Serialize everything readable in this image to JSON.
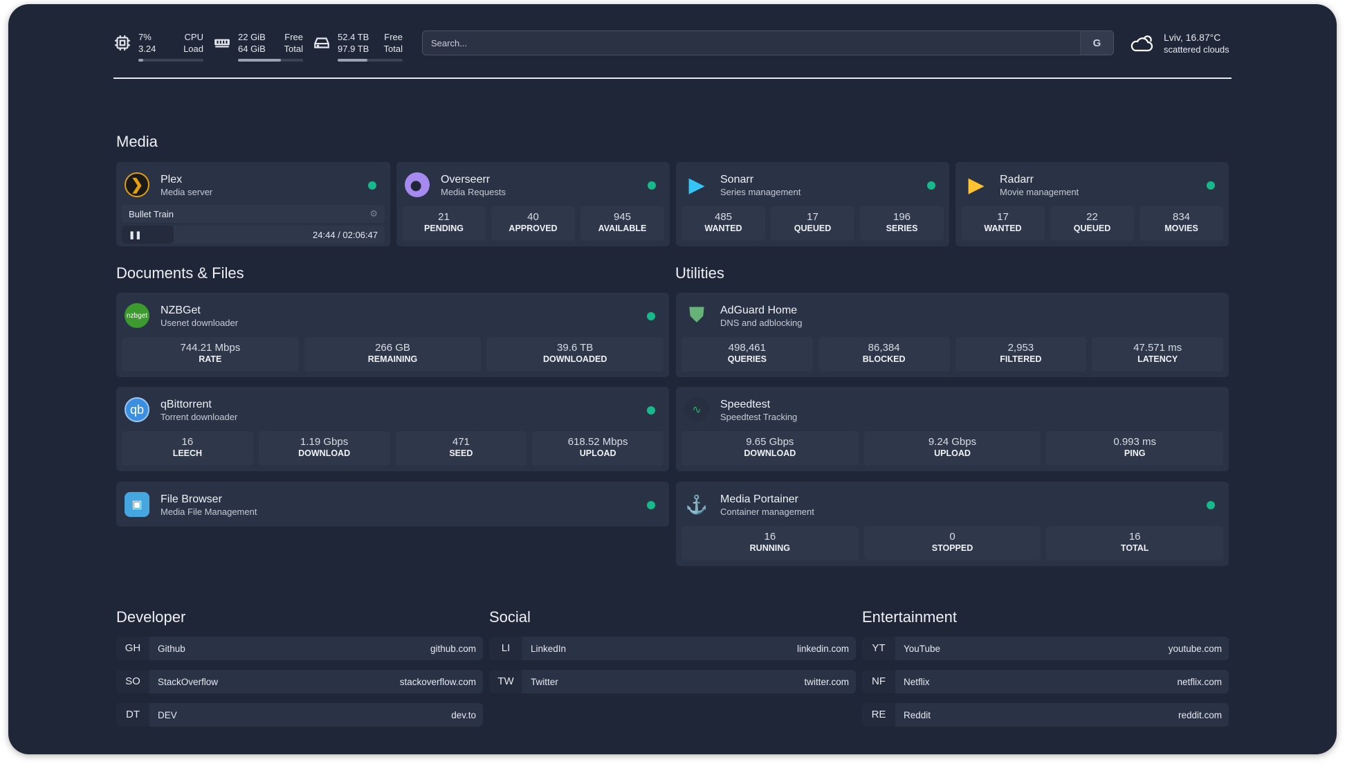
{
  "header": {
    "cpu": {
      "icon": "cpu-icon",
      "value1": "7%",
      "value2": "3.24",
      "label1": "CPU",
      "label2": "Load",
      "percent": 7
    },
    "memory": {
      "icon": "memory-icon",
      "value1": "22 GiB",
      "value2": "64 GiB",
      "label1": "Free",
      "label2": "Total",
      "percent": 66
    },
    "disk": {
      "icon": "disk-icon",
      "value1": "52.4 TB",
      "value2": "97.9 TB",
      "label1": "Free",
      "label2": "Total",
      "percent": 46
    },
    "search": {
      "placeholder": "Search...",
      "provider": "G"
    },
    "weather": {
      "icon": "cloud-icon",
      "location": "Lviv, 16.87°C",
      "description": "scattered clouds"
    }
  },
  "sections": {
    "media": "Media",
    "documents": "Documents & Files",
    "utilities": "Utilities",
    "developer": "Developer",
    "social": "Social",
    "entertainment": "Entertainment"
  },
  "status_color": "#16b98a",
  "plex": {
    "title": "Plex",
    "subtitle": "Media server",
    "icon": "plex-icon",
    "now_playing": "Bullet Train",
    "time": "24:44 / 02:06:47",
    "progress": 20
  },
  "cards": [
    {
      "id": "overseerr",
      "title": "Overseerr",
      "subtitle": "Media Requests",
      "icon": "overseerr-icon",
      "stats": [
        {
          "v": "21",
          "l": "PENDING"
        },
        {
          "v": "40",
          "l": "APPROVED"
        },
        {
          "v": "945",
          "l": "AVAILABLE"
        }
      ]
    },
    {
      "id": "sonarr",
      "title": "Sonarr",
      "subtitle": "Series management",
      "icon": "sonarr-icon",
      "stats": [
        {
          "v": "485",
          "l": "WANTED"
        },
        {
          "v": "17",
          "l": "QUEUED"
        },
        {
          "v": "196",
          "l": "SERIES"
        }
      ]
    },
    {
      "id": "radarr",
      "title": "Radarr",
      "subtitle": "Movie management",
      "icon": "radarr-icon",
      "stats": [
        {
          "v": "17",
          "l": "WANTED"
        },
        {
          "v": "22",
          "l": "QUEUED"
        },
        {
          "v": "834",
          "l": "MOVIES"
        }
      ]
    },
    {
      "id": "nzbget",
      "title": "NZBGet",
      "subtitle": "Usenet downloader",
      "icon": "nzbget-icon",
      "icon_text": "nzbget",
      "stats": [
        {
          "v": "744.21 Mbps",
          "l": "RATE"
        },
        {
          "v": "266 GB",
          "l": "REMAINING"
        },
        {
          "v": "39.6 TB",
          "l": "DOWNLOADED"
        }
      ]
    },
    {
      "id": "qbittorrent",
      "title": "qBittorrent",
      "subtitle": "Torrent downloader",
      "icon": "qbittorrent-icon",
      "icon_text": "qb",
      "stats": [
        {
          "v": "16",
          "l": "LEECH"
        },
        {
          "v": "1.19 Gbps",
          "l": "DOWNLOAD"
        },
        {
          "v": "471",
          "l": "SEED"
        },
        {
          "v": "618.52 Mbps",
          "l": "UPLOAD"
        }
      ]
    },
    {
      "id": "filebrowser",
      "title": "File Browser",
      "subtitle": "Media File Management",
      "icon": "file-browser-icon",
      "stats": []
    },
    {
      "id": "adguard",
      "title": "AdGuard Home",
      "subtitle": "DNS and adblocking",
      "icon": "adguard-shield-icon",
      "nodot": true,
      "stats": [
        {
          "v": "498,461",
          "l": "QUERIES"
        },
        {
          "v": "86,384",
          "l": "BLOCKED"
        },
        {
          "v": "2,953",
          "l": "FILTERED"
        },
        {
          "v": "47.571 ms",
          "l": "LATENCY"
        }
      ]
    },
    {
      "id": "speedtest",
      "title": "Speedtest",
      "subtitle": "Speedtest Tracking",
      "icon": "speedtest-icon",
      "nodot": true,
      "stats": [
        {
          "v": "9.65 Gbps",
          "l": "DOWNLOAD"
        },
        {
          "v": "9.24 Gbps",
          "l": "UPLOAD"
        },
        {
          "v": "0.993 ms",
          "l": "PING"
        }
      ]
    },
    {
      "id": "portainer",
      "title": "Media Portainer",
      "subtitle": "Container management",
      "icon": "portainer-icon",
      "stats": [
        {
          "v": "16",
          "l": "RUNNING"
        },
        {
          "v": "0",
          "l": "STOPPED"
        },
        {
          "v": "16",
          "l": "TOTAL"
        }
      ]
    }
  ],
  "bookmarks": {
    "developer": [
      {
        "abbr": "GH",
        "name": "Github",
        "url": "github.com"
      },
      {
        "abbr": "SO",
        "name": "StackOverflow",
        "url": "stackoverflow.com"
      },
      {
        "abbr": "DT",
        "name": "DEV",
        "url": "dev.to"
      }
    ],
    "social": [
      {
        "abbr": "LI",
        "name": "LinkedIn",
        "url": "linkedin.com"
      },
      {
        "abbr": "TW",
        "name": "Twitter",
        "url": "twitter.com"
      }
    ],
    "entertainment": [
      {
        "abbr": "YT",
        "name": "YouTube",
        "url": "youtube.com"
      },
      {
        "abbr": "NF",
        "name": "Netflix",
        "url": "netflix.com"
      },
      {
        "abbr": "RE",
        "name": "Reddit",
        "url": "reddit.com"
      }
    ]
  }
}
